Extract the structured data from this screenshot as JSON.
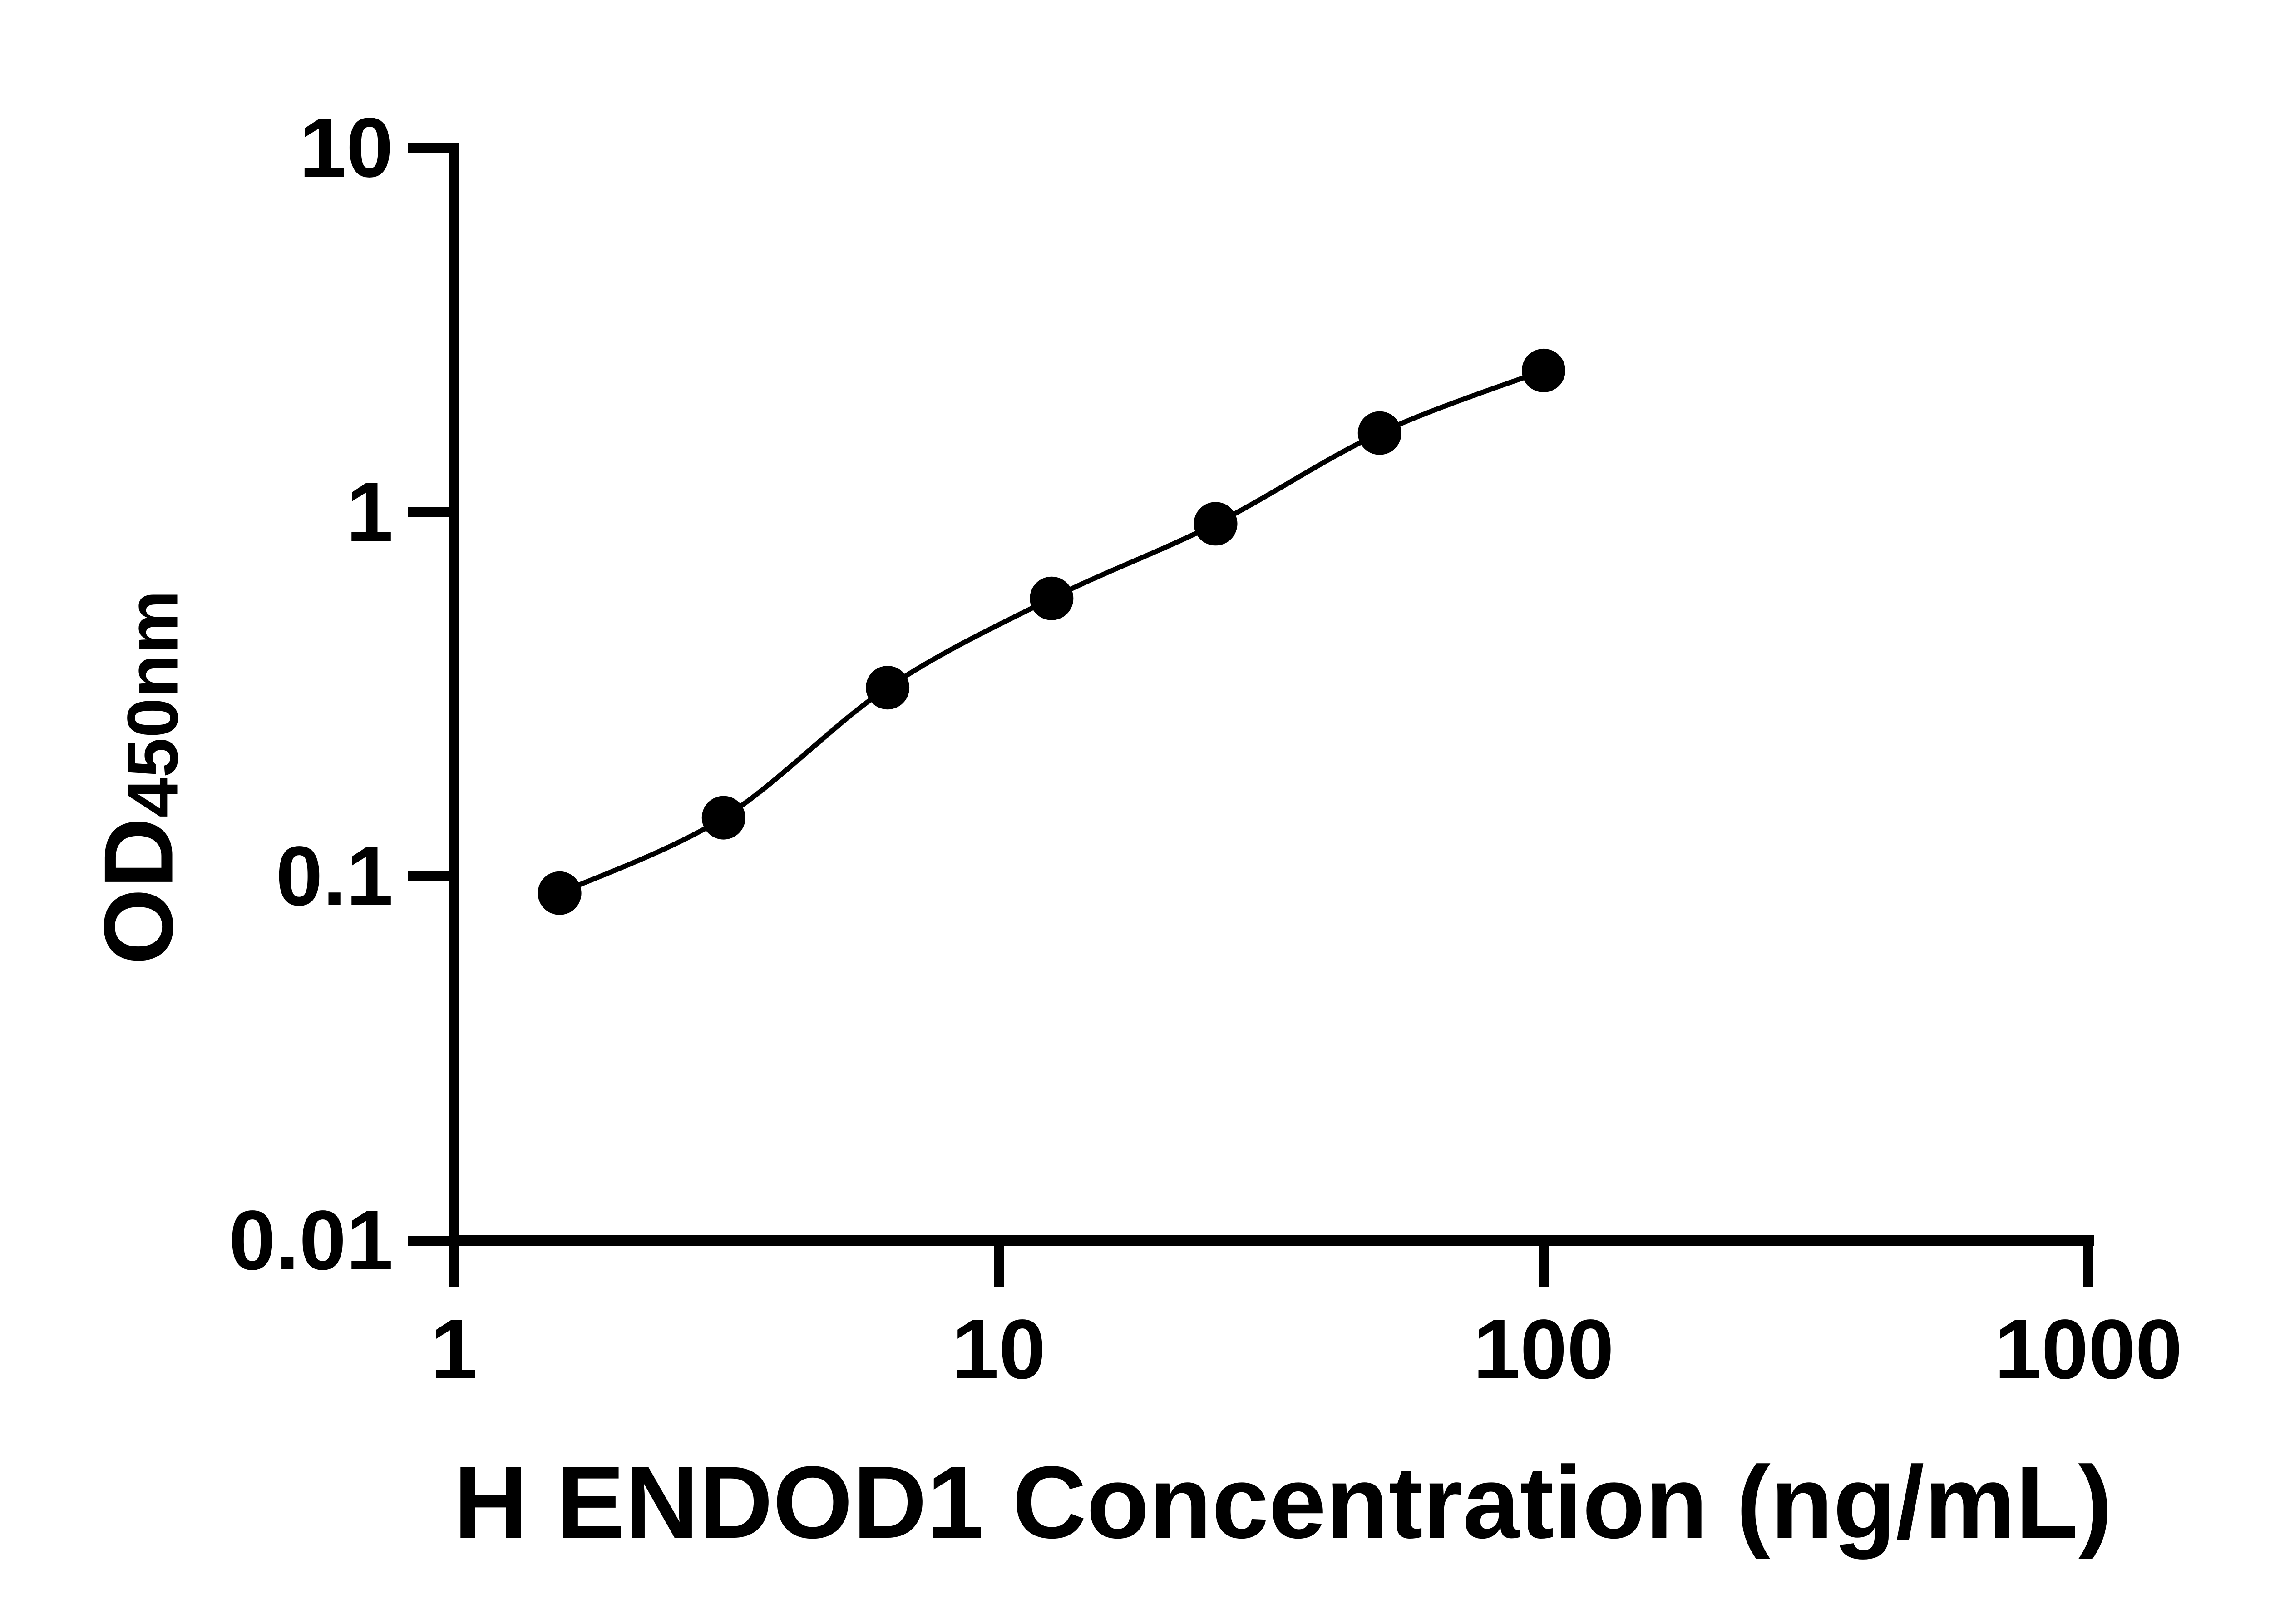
{
  "chart_data": {
    "type": "scatter",
    "title": "",
    "xlabel": "H ENDOD1 Concentration (ng/mL)",
    "ylabel": "OD450nm",
    "ylabel_main": "OD",
    "ylabel_sub": "450nm",
    "x_scale": "log",
    "y_scale": "log",
    "xlim": [
      1,
      1000
    ],
    "ylim": [
      0.01,
      10
    ],
    "x_ticks": [
      1,
      10,
      100,
      1000
    ],
    "x_tick_labels": [
      "1",
      "10",
      "100",
      "1000"
    ],
    "y_ticks": [
      10,
      1,
      0.1,
      0.01
    ],
    "y_tick_labels": [
      "10",
      "1",
      "0.1",
      "0.01"
    ],
    "grid": false,
    "legend": "none",
    "marker": "filled-circle",
    "line": "smooth",
    "series": [
      {
        "name": "standard-curve",
        "x": [
          1.5625,
          3.125,
          6.25,
          12.5,
          25,
          50,
          100
        ],
        "y": [
          0.09,
          0.145,
          0.33,
          0.58,
          0.93,
          1.65,
          2.45
        ]
      }
    ],
    "colors": {
      "ink": "#000000",
      "background": "#ffffff"
    }
  }
}
